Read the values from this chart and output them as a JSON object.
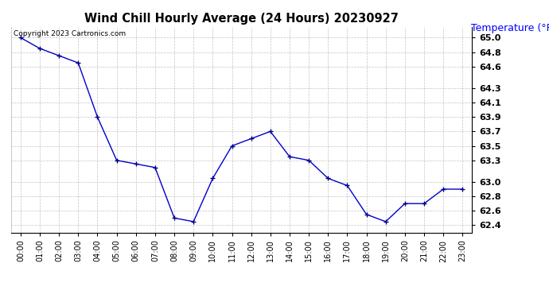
{
  "title": "Wind Chill Hourly Average (24 Hours) 20230927",
  "ylabel": "Temperature (°F)",
  "copyright_text": "Copyright 2023 Cartronics.com",
  "hours": [
    "00:00",
    "01:00",
    "02:00",
    "03:00",
    "04:00",
    "05:00",
    "06:00",
    "07:00",
    "08:00",
    "09:00",
    "10:00",
    "11:00",
    "12:00",
    "13:00",
    "14:00",
    "15:00",
    "16:00",
    "17:00",
    "18:00",
    "19:00",
    "20:00",
    "21:00",
    "22:00",
    "23:00"
  ],
  "values": [
    65.0,
    64.85,
    64.75,
    64.65,
    63.9,
    63.3,
    63.25,
    63.2,
    62.5,
    62.45,
    63.05,
    63.5,
    63.6,
    63.7,
    63.35,
    63.3,
    63.05,
    62.95,
    62.55,
    62.45,
    62.7,
    62.7,
    62.9,
    62.9
  ],
  "line_color": "#0000cc",
  "marker_color": "#000080",
  "title_color": "#000000",
  "ylabel_color": "#0000ff",
  "background_color": "#ffffff",
  "grid_color": "#aaaaaa",
  "ylim_min": 62.3,
  "ylim_max": 65.15,
  "yticks": [
    62.4,
    62.6,
    62.8,
    63.0,
    63.3,
    63.5,
    63.7,
    63.9,
    64.1,
    64.3,
    64.6,
    64.8,
    65.0
  ]
}
